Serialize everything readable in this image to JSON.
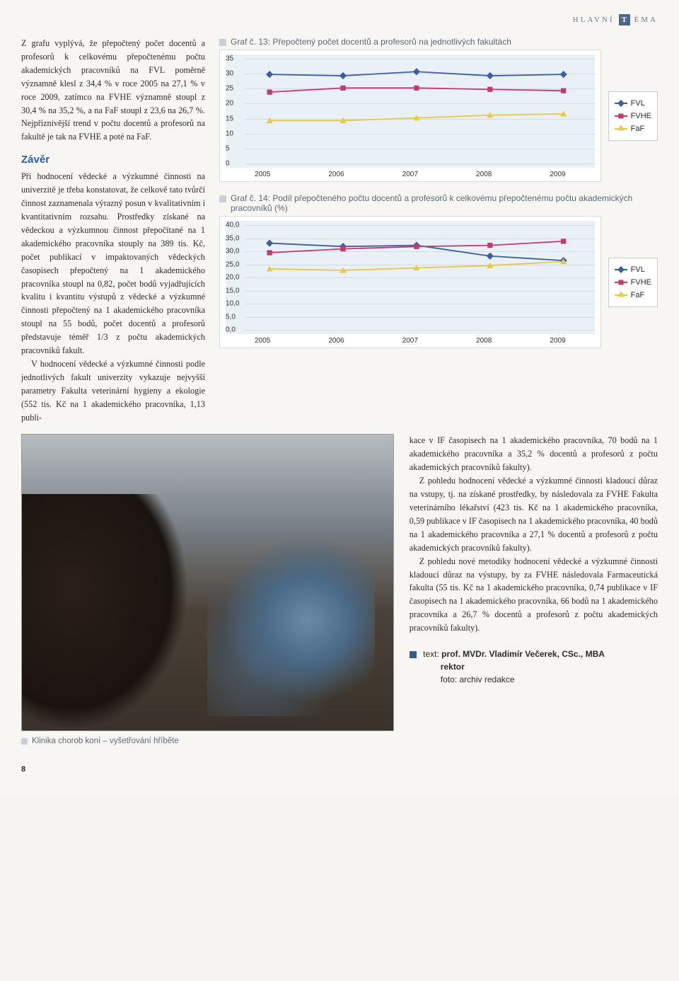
{
  "header": {
    "pre": "HLAVNÍ",
    "letter": "T",
    "post": "ÉMA"
  },
  "left": {
    "para1": "Z grafu vyplývá, že přepočtený počet docentů a profesorů k celkovému přepočtenému počtu akademických pracovníků na FVL poměrně významně klesl z 34,4 % v roce 2005 na 27,1 % v roce 2009, zatímco na FVHE významně stoupl z 30,4 % na 35,2 %, a na FaF stoupl z 23,6 na 26,7 %. Nejpříznivější trend v počtu docentů a profesorů na fakultě je tak na FVHE a poté na FaF.",
    "subhead": "Závěr",
    "para2": "Při hodnocení vědecké a výzkumné činnosti na univerzitě je třeba konstatovat, že celkově tato tvůrčí činnost zaznamenala výrazný posun v kvalitativním i kvantitativním rozsahu. Prostředky získané na vědeckou a výzkumnou činnost přepočítané na 1 akademického pracovníka stouply na 389 tis. Kč, počet publikací v impaktovaných vědeckých časopisech přepočtený na 1 akademického pracovníka stoupl na 0,82, počet bodů vyjadřujících kvalitu i kvantitu výstupů z vědecké a výzkumné činnosti přepočtený na 1 akademického pracovníka stoupl na 55 bodů, počet docentů a profesorů představuje téměř 1/3 z počtu akademických pracovníků fakult.",
    "para3": "V hodnocení vědecké a výzkumné činnosti podle jednotlivých fakult univerzity vykazuje nejvyšší parametry Fakulta veterinární hygieny a ekologie (552 tis. Kč na 1 akademického pracovníka, 1,13 publi-"
  },
  "chart13": {
    "title": "Graf č. 13: Přepočtený počet docentů a profesorů na jednotlivých fakultách",
    "type": "line",
    "categories": [
      "2005",
      "2006",
      "2007",
      "2008",
      "2009"
    ],
    "ylim": [
      0,
      35
    ],
    "ytick_step": 5,
    "background_color": "#eaf1f6",
    "grid_color": "#d2dae2",
    "series": [
      {
        "name": "FVL",
        "color": "#3b5f9e",
        "marker": "diamond",
        "values": [
          31,
          30.5,
          32,
          30.5,
          31
        ]
      },
      {
        "name": "FVHE",
        "color": "#c33a70",
        "marker": "square",
        "values": [
          24.5,
          26,
          26,
          25.5,
          25
        ]
      },
      {
        "name": "FaF",
        "color": "#e6c84a",
        "marker": "triangle",
        "values": [
          14,
          14,
          15,
          16,
          16.5
        ]
      }
    ]
  },
  "chart14": {
    "title": "Graf č. 14: Podíl přepočteného počtu docentů a profesorů k celkovému přepočtenému počtu akademických pracovníků (%)",
    "type": "line",
    "categories": [
      "2005",
      "2006",
      "2007",
      "2008",
      "2009"
    ],
    "ylim": [
      0,
      40
    ],
    "ytick_step": 5,
    "background_color": "#eaf1f6",
    "grid_color": "#d2dae2",
    "series": [
      {
        "name": "FVL",
        "color": "#3b5f9e",
        "marker": "diamond",
        "values": [
          34.4,
          33.0,
          33.5,
          29.0,
          27.1
        ]
      },
      {
        "name": "FVHE",
        "color": "#c33a70",
        "marker": "square",
        "values": [
          30.4,
          32.0,
          33.0,
          33.5,
          35.2
        ]
      },
      {
        "name": "FaF",
        "color": "#e6c84a",
        "marker": "triangle",
        "values": [
          23.6,
          23.0,
          24.0,
          25.0,
          26.7
        ]
      }
    ]
  },
  "legend_fontsize": 11,
  "caption": "Klinika chorob koní – vyšetřování hříběte",
  "right": {
    "para1": "kace v IF časopisech na 1 akademického pracovníka, 70 bodů na 1 akademického pracovníka a 35,2 % docentů a profesorů z počtu akademických pracovníků fakulty).",
    "para2": "Z pohledu hodnocení vědecké a výzkumné činnosti kladoucí důraz na vstupy, tj. na získané prostředky, by následovala za FVHE Fakulta veterinárního lékařství (423 tis. Kč na 1 akademického pracovníka, 0,59 publikace v IF časopisech na 1 akademického pracovníka, 40 bodů na 1 akademického pracovníka a 27,1 % docentů a profesorů z počtu akademických pracovníků fakulty).",
    "para3": "Z pohledu nové metodiky hodnocení vědecké a výzkumné činnosti kladoucí důraz na výstupy, by za FVHE následovala Farmaceutická fakulta (55 tis. Kč na 1 akademického pracovníka, 0,74 publikace v IF časopisech na 1 akademického pracovníka, 66 bodů na 1 akademického pracovníka a 26,7 % docentů a profesorů z počtu akademických pracovníků fakulty)."
  },
  "credits": {
    "label": "text:",
    "name": "prof. MVDr. Vladimír Večerek, CSc., MBA",
    "title": "rektor",
    "photo_label": "foto:",
    "photo": "archiv redakce"
  },
  "pagenum": "8"
}
